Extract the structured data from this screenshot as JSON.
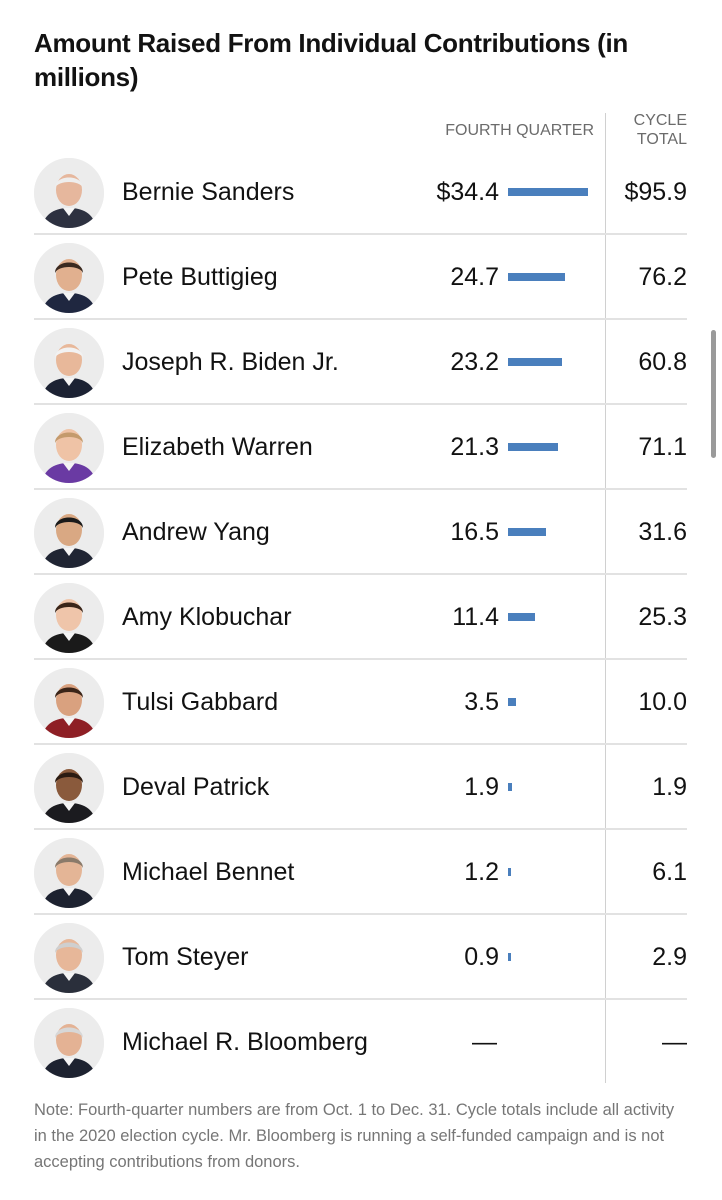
{
  "chart_data": {
    "type": "bar",
    "title": "Amount Raised From Individual Contributions (in millions)",
    "columns": {
      "fourth_quarter": "FOURTH QUARTER",
      "cycle_total": "CYCLE TOTAL"
    },
    "categories": [
      "Bernie Sanders",
      "Pete Buttigieg",
      "Joseph R. Biden Jr.",
      "Elizabeth Warren",
      "Andrew Yang",
      "Amy Klobuchar",
      "Tulsi Gabbard",
      "Deval Patrick",
      "Michael Bennet",
      "Tom Steyer",
      "Michael R. Bloomberg"
    ],
    "series": [
      {
        "values": [
          34.4,
          24.7,
          23.2,
          21.3,
          16.5,
          11.4,
          3.5,
          1.9,
          1.2,
          0.9,
          null
        ]
      },
      {
        "values": [
          95.9,
          76.2,
          60.8,
          71.1,
          31.6,
          25.3,
          10.0,
          1.9,
          6.1,
          2.9,
          null
        ]
      }
    ],
    "rows": [
      {
        "name": "Bernie Sanders",
        "quarter_label": "$34.4",
        "quarter": 34.4,
        "cycle_label": "$95.9",
        "cycle": 95.9
      },
      {
        "name": "Pete Buttigieg",
        "quarter_label": "24.7",
        "quarter": 24.7,
        "cycle_label": "76.2",
        "cycle": 76.2
      },
      {
        "name": "Joseph R. Biden Jr.",
        "quarter_label": "23.2",
        "quarter": 23.2,
        "cycle_label": "60.8",
        "cycle": 60.8
      },
      {
        "name": "Elizabeth Warren",
        "quarter_label": "21.3",
        "quarter": 21.3,
        "cycle_label": "71.1",
        "cycle": 71.1
      },
      {
        "name": "Andrew Yang",
        "quarter_label": "16.5",
        "quarter": 16.5,
        "cycle_label": "31.6",
        "cycle": 31.6
      },
      {
        "name": "Amy Klobuchar",
        "quarter_label": "11.4",
        "quarter": 11.4,
        "cycle_label": "25.3",
        "cycle": 25.3
      },
      {
        "name": "Tulsi Gabbard",
        "quarter_label": "3.5",
        "quarter": 3.5,
        "cycle_label": "10.0",
        "cycle": 10.0
      },
      {
        "name": "Deval Patrick",
        "quarter_label": "1.9",
        "quarter": 1.9,
        "cycle_label": "1.9",
        "cycle": 1.9
      },
      {
        "name": "Michael Bennet",
        "quarter_label": "1.2",
        "quarter": 1.2,
        "cycle_label": "6.1",
        "cycle": 6.1
      },
      {
        "name": "Tom Steyer",
        "quarter_label": "0.9",
        "quarter": 0.9,
        "cycle_label": "2.9",
        "cycle": 2.9
      },
      {
        "name": "Michael R. Bloomberg",
        "quarter_label": "—",
        "quarter": null,
        "cycle_label": "—",
        "cycle": null
      }
    ],
    "bar_max": 34.4,
    "bar_color": "#4a7fbd",
    "note": "Note: Fourth-quarter numbers are from Oct. 1 to Dec. 31. Cycle totals include all activity in the 2020 election cycle. Mr. Bloomberg is running a self-funded campaign and is not accepting contributions from donors."
  },
  "avatars": [
    {
      "icon": "bernie-sanders-photo",
      "skin": "#e6b79d",
      "hair": "#eeeeee",
      "suit": "#2d3140",
      "bg": "#ececec"
    },
    {
      "icon": "pete-buttigieg-photo",
      "skin": "#e1b08f",
      "hair": "#3b2a20",
      "suit": "#1f2740",
      "bg": "#ececec"
    },
    {
      "icon": "joseph-biden-photo",
      "skin": "#e8b89a",
      "hair": "#f2f2f2",
      "suit": "#1c2233",
      "bg": "#ececec"
    },
    {
      "icon": "elizabeth-warren-photo",
      "skin": "#efc3a6",
      "hair": "#c49a6c",
      "suit": "#6a3aa3",
      "bg": "#ececec"
    },
    {
      "icon": "andrew-yang-photo",
      "skin": "#d9a883",
      "hair": "#1a1a1a",
      "suit": "#202533",
      "bg": "#ececec"
    },
    {
      "icon": "amy-klobuchar-photo",
      "skin": "#efc5aa",
      "hair": "#3a2519",
      "suit": "#1a1a1a",
      "bg": "#ececec"
    },
    {
      "icon": "tulsi-gabbard-photo",
      "skin": "#d9a17f",
      "hair": "#3a2418",
      "suit": "#8e1f25",
      "bg": "#ececec"
    },
    {
      "icon": "deval-patrick-photo",
      "skin": "#8a5a3c",
      "hair": "#2b1b12",
      "suit": "#1b1b1f",
      "bg": "#ececec"
    },
    {
      "icon": "michael-bennet-photo",
      "skin": "#e4b596",
      "hair": "#8a7a6a",
      "suit": "#1d2230",
      "bg": "#ececec"
    },
    {
      "icon": "tom-steyer-photo",
      "skin": "#e7b799",
      "hair": "#cfcfcf",
      "suit": "#2a2f3b",
      "bg": "#ececec"
    },
    {
      "icon": "michael-bloomberg-photo",
      "skin": "#e4b294",
      "hair": "#d7d7d7",
      "suit": "#1d2230",
      "bg": "#ececec"
    }
  ]
}
